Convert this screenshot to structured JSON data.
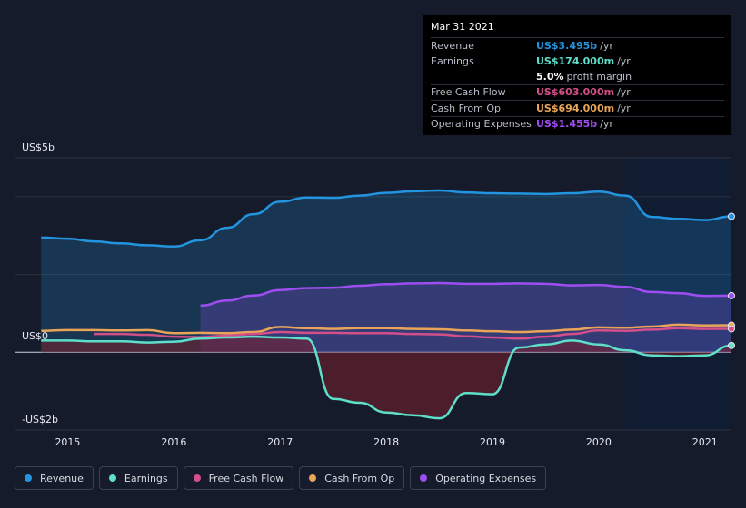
{
  "chart_data": {
    "type": "area",
    "y_unit_labels": {
      "top": "US$5b",
      "zero": "US$0",
      "bottom": "-US$2b"
    },
    "ylim": [
      -2,
      5
    ],
    "xlim": [
      2014.5,
      2021.25
    ],
    "x_ticks": [
      {
        "value": 2015,
        "label": "2015"
      },
      {
        "value": 2016,
        "label": "2016"
      },
      {
        "value": 2017,
        "label": "2017"
      },
      {
        "value": 2018,
        "label": "2018"
      },
      {
        "value": 2019,
        "label": "2019"
      },
      {
        "value": 2020,
        "label": "2020"
      },
      {
        "value": 2021,
        "label": "2021"
      }
    ],
    "forecast_start": 2020.25,
    "series": [
      {
        "name": "Revenue",
        "color": "#2394df",
        "fill": true,
        "x": [
          2014.75,
          2015.0,
          2015.25,
          2015.5,
          2015.75,
          2016.0,
          2016.25,
          2016.5,
          2016.75,
          2017.0,
          2017.25,
          2017.5,
          2017.75,
          2018.0,
          2018.25,
          2018.5,
          2018.75,
          2019.0,
          2019.25,
          2019.5,
          2019.75,
          2020.0,
          2020.25,
          2020.5,
          2020.75,
          2021.0,
          2021.25
        ],
        "y": [
          2.95,
          2.92,
          2.85,
          2.8,
          2.75,
          2.72,
          2.88,
          3.2,
          3.55,
          3.87,
          3.98,
          3.97,
          4.03,
          4.1,
          4.14,
          4.16,
          4.11,
          4.09,
          4.08,
          4.07,
          4.09,
          4.13,
          4.03,
          3.48,
          3.43,
          3.4,
          3.495
        ]
      },
      {
        "name": "Operating Expenses",
        "color": "#9e4ef0",
        "fill": true,
        "x": [
          2016.25,
          2016.5,
          2016.75,
          2017.0,
          2017.25,
          2017.5,
          2017.75,
          2018.0,
          2018.25,
          2018.5,
          2018.75,
          2019.0,
          2019.25,
          2019.5,
          2019.75,
          2020.0,
          2020.25,
          2020.5,
          2020.75,
          2021.0,
          2021.25
        ],
        "y": [
          1.2,
          1.33,
          1.46,
          1.6,
          1.65,
          1.66,
          1.71,
          1.75,
          1.77,
          1.78,
          1.76,
          1.76,
          1.77,
          1.76,
          1.72,
          1.73,
          1.68,
          1.55,
          1.52,
          1.45,
          1.455
        ]
      },
      {
        "name": "Cash From Op",
        "color": "#e8a55a",
        "fill": false,
        "x": [
          2014.75,
          2015.0,
          2015.25,
          2015.5,
          2015.75,
          2016.0,
          2016.25,
          2016.5,
          2016.75,
          2017.0,
          2017.25,
          2017.5,
          2017.75,
          2018.0,
          2018.25,
          2018.5,
          2018.75,
          2019.0,
          2019.25,
          2019.5,
          2019.75,
          2020.0,
          2020.25,
          2020.5,
          2020.75,
          2021.0,
          2021.25
        ],
        "y": [
          0.55,
          0.57,
          0.57,
          0.56,
          0.57,
          0.49,
          0.5,
          0.49,
          0.52,
          0.65,
          0.62,
          0.6,
          0.62,
          0.62,
          0.6,
          0.59,
          0.56,
          0.54,
          0.52,
          0.54,
          0.58,
          0.64,
          0.63,
          0.66,
          0.71,
          0.69,
          0.694
        ]
      },
      {
        "name": "Free Cash Flow",
        "color": "#d34f8a",
        "fill": false,
        "x": [
          2015.25,
          2015.5,
          2015.75,
          2016.0,
          2016.25,
          2016.5,
          2016.75,
          2017.0,
          2017.25,
          2017.5,
          2017.75,
          2018.0,
          2018.25,
          2018.5,
          2018.75,
          2019.0,
          2019.25,
          2019.5,
          2019.75,
          2020.0,
          2020.25,
          2020.5,
          2020.75,
          2021.0,
          2021.25
        ],
        "y": [
          0.47,
          0.47,
          0.45,
          0.4,
          0.39,
          0.43,
          0.47,
          0.52,
          0.5,
          0.5,
          0.49,
          0.49,
          0.47,
          0.46,
          0.41,
          0.38,
          0.35,
          0.4,
          0.47,
          0.56,
          0.55,
          0.58,
          0.62,
          0.6,
          0.603
        ]
      },
      {
        "name": "Earnings",
        "color": "#5ddfca",
        "fill": true,
        "x": [
          2014.75,
          2015.0,
          2015.25,
          2015.5,
          2015.75,
          2016.0,
          2016.25,
          2016.5,
          2016.75,
          2017.0,
          2017.25,
          2017.5,
          2017.75,
          2018.0,
          2018.25,
          2018.5,
          2018.75,
          2019.0,
          2019.25,
          2019.5,
          2019.75,
          2020.0,
          2020.25,
          2020.5,
          2020.75,
          2021.0,
          2021.25
        ],
        "y": [
          0.3,
          0.3,
          0.28,
          0.28,
          0.25,
          0.27,
          0.35,
          0.38,
          0.4,
          0.38,
          0.35,
          -1.2,
          -1.3,
          -1.55,
          -1.62,
          -1.7,
          -1.05,
          -1.08,
          0.12,
          0.2,
          0.3,
          0.2,
          0.05,
          -0.08,
          -0.1,
          -0.08,
          0.174
        ]
      }
    ]
  },
  "tooltip": {
    "date": "Mar 31 2021",
    "rows": [
      {
        "label": "Revenue",
        "value": "US$3.495b",
        "unit": "/yr",
        "color": "#2394df"
      },
      {
        "label": "Earnings",
        "value": "US$174.000m",
        "unit": "/yr",
        "color": "#5ddfca"
      },
      {
        "label": "",
        "value": "5.0%",
        "unit": "profit margin",
        "color": "#ffffff"
      },
      {
        "label": "Free Cash Flow",
        "value": "US$603.000m",
        "unit": "/yr",
        "color": "#d34f8a"
      },
      {
        "label": "Cash From Op",
        "value": "US$694.000m",
        "unit": "/yr",
        "color": "#e8a55a"
      },
      {
        "label": "Operating Expenses",
        "value": "US$1.455b",
        "unit": "/yr",
        "color": "#9e4ef0"
      }
    ]
  },
  "legend": [
    {
      "label": "Revenue",
      "color": "#2394df"
    },
    {
      "label": "Earnings",
      "color": "#5ddfca"
    },
    {
      "label": "Free Cash Flow",
      "color": "#d34f8a"
    },
    {
      "label": "Cash From Op",
      "color": "#e8a55a"
    },
    {
      "label": "Operating Expenses",
      "color": "#9e4ef0"
    }
  ]
}
